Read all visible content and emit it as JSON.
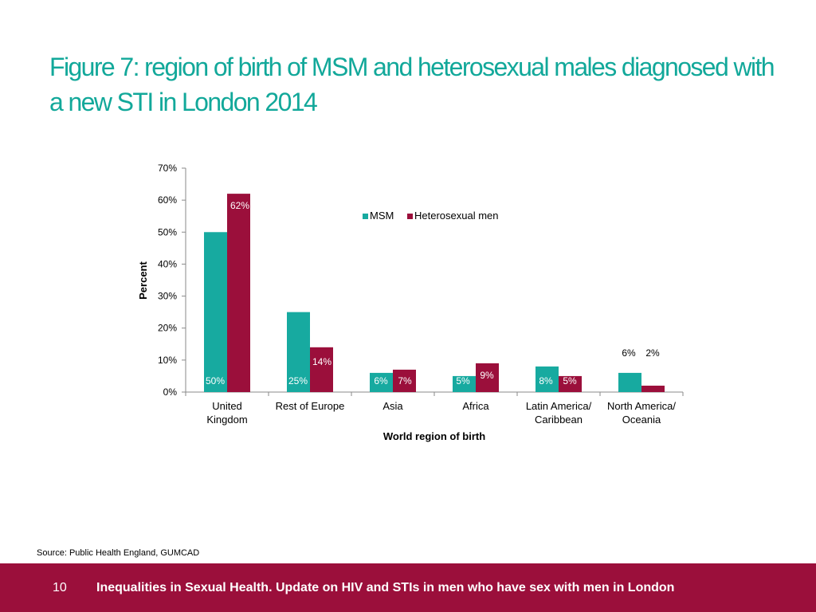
{
  "slide": {
    "title": "Figure 7: region of birth of MSM and heterosexual males diagnosed with a new STI in London 2014",
    "source": "Source: Public Health England, GUMCAD"
  },
  "footer": {
    "page_number": "10",
    "text": "Inequalities in Sexual Health. Update on HIV and STIs in men who have sex with men in London"
  },
  "colors": {
    "title": "#12a89a",
    "msm": "#17aaa0",
    "heterosexual": "#9b0f3b",
    "footer_bg": "#9b0f3b"
  },
  "chart_data": {
    "type": "bar",
    "xlabel": "World region of birth",
    "ylabel": "Percent",
    "ylim": [
      0,
      70
    ],
    "yticks": [
      "0%",
      "10%",
      "20%",
      "30%",
      "40%",
      "50%",
      "60%",
      "70%"
    ],
    "categories": [
      [
        "United",
        "Kingdom"
      ],
      [
        "Rest of Europe"
      ],
      [
        "Asia"
      ],
      [
        "Africa"
      ],
      [
        "Latin America/",
        "Caribbean"
      ],
      [
        "North America/",
        "Oceania"
      ]
    ],
    "series": [
      {
        "name": "MSM",
        "color": "#17aaa0",
        "values": [
          50,
          25,
          6,
          5,
          8,
          6
        ],
        "data_labels": [
          "50%",
          "25%",
          "6%",
          "5%",
          "8%",
          "6%"
        ]
      },
      {
        "name": "Heterosexual men",
        "color": "#9b0f3b",
        "values": [
          62,
          14,
          7,
          9,
          5,
          2
        ],
        "data_labels": [
          "62%",
          "14%",
          "7%",
          "9%",
          "5%",
          "2%"
        ]
      }
    ],
    "legend_position": "top-right",
    "grid": false
  }
}
